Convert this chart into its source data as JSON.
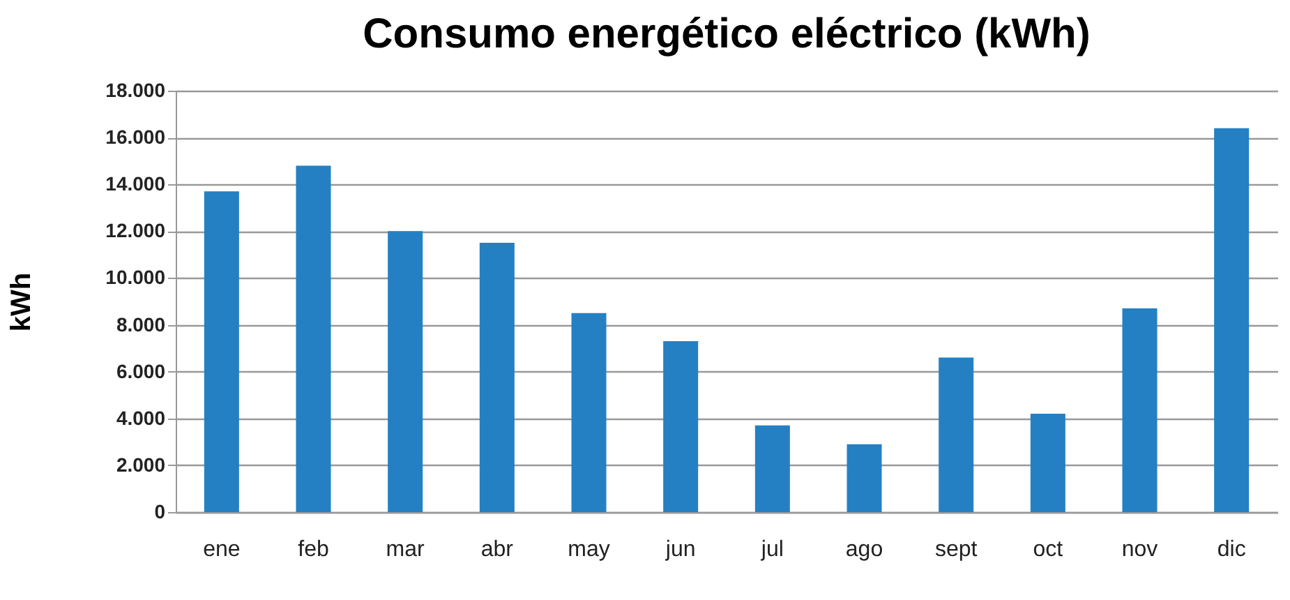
{
  "chart_data": {
    "type": "bar",
    "title": "Consumo energético eléctrico (kWh)",
    "ylabel": "kWh",
    "categories": [
      "ene",
      "feb",
      "mar",
      "abr",
      "may",
      "jun",
      "jul",
      "ago",
      "sept",
      "oct",
      "nov",
      "dic"
    ],
    "values": [
      13700,
      14800,
      12000,
      11500,
      8500,
      7300,
      3700,
      2900,
      6600,
      4200,
      8700,
      16400
    ],
    "color": "#2580c3",
    "ylim": [
      0,
      18000
    ],
    "yticks": [
      {
        "value": 0,
        "label": "0"
      },
      {
        "value": 2000,
        "label": "2.000"
      },
      {
        "value": 4000,
        "label": "4.000"
      },
      {
        "value": 6000,
        "label": "6.000"
      },
      {
        "value": 8000,
        "label": "8.000"
      },
      {
        "value": 10000,
        "label": "10.000"
      },
      {
        "value": 12000,
        "label": "12.000"
      },
      {
        "value": 14000,
        "label": "14.000"
      },
      {
        "value": 16000,
        "label": "16.000"
      },
      {
        "value": 18000,
        "label": "18.000"
      }
    ],
    "grid": "y"
  }
}
